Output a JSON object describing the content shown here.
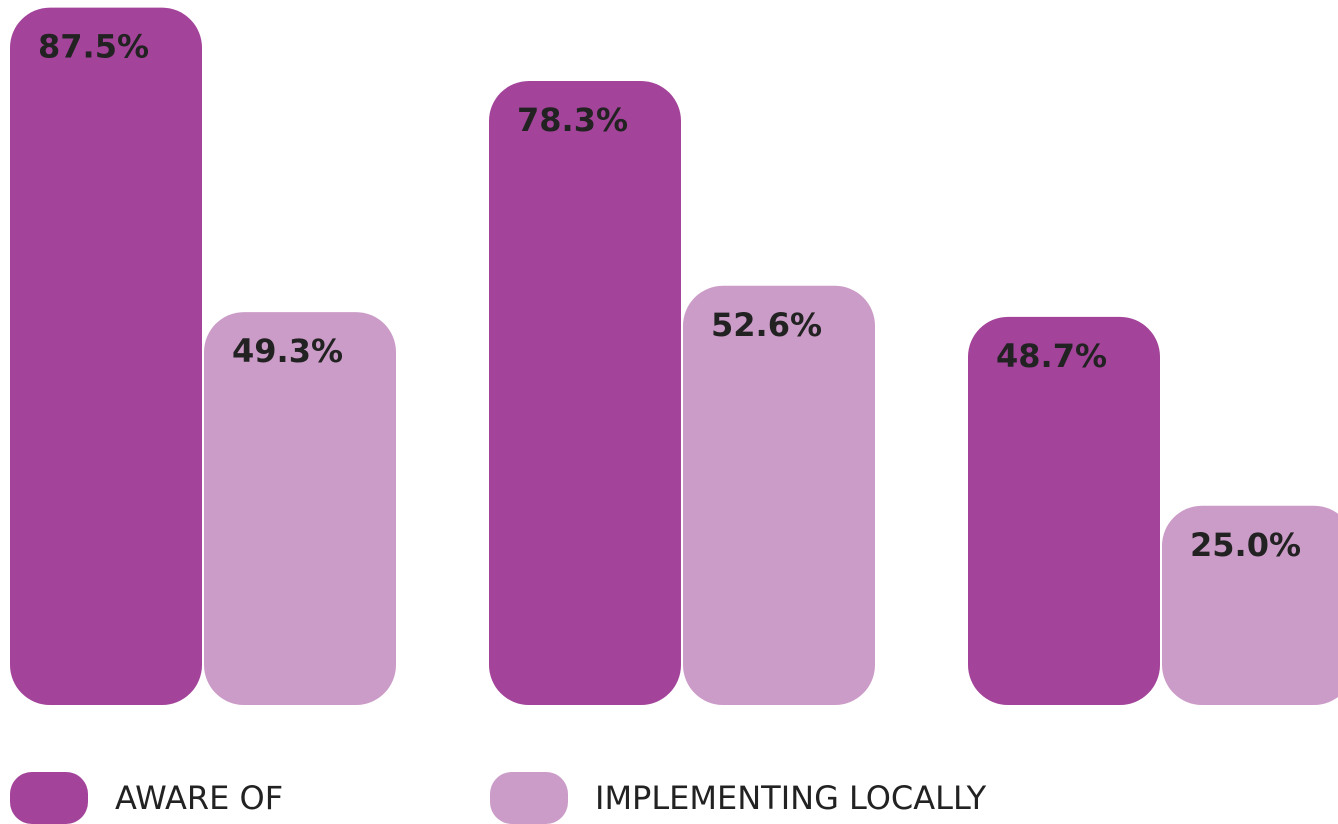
{
  "chart_data": {
    "type": "bar",
    "categories": [
      null,
      null,
      null
    ],
    "series": [
      {
        "name": "AWARE OF",
        "color": "#a3449a",
        "values": [
          87.5,
          78.3,
          48.7
        ],
        "value_labels": [
          "87.5%",
          "78.3%",
          "48.7%"
        ]
      },
      {
        "name": "IMPLEMENTING LOCALLY",
        "color": "#cc9cc8",
        "values": [
          49.3,
          52.6,
          25.0
        ],
        "value_labels": [
          "49.3%",
          "52.6%",
          "25.0%"
        ]
      }
    ],
    "ylim": [
      0,
      100
    ]
  }
}
